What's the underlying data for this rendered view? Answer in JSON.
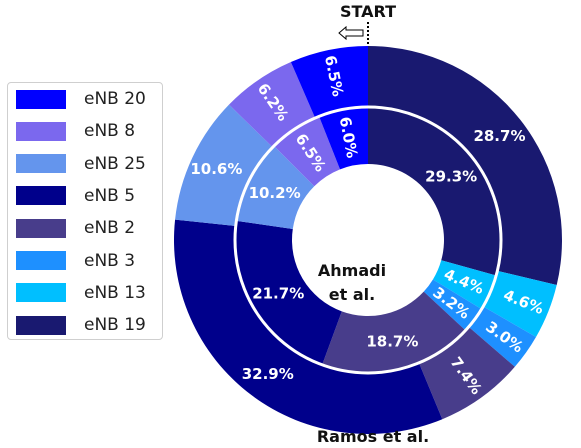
{
  "chart_data": {
    "type": "pie",
    "style": "nested-donut",
    "start_label": "START",
    "outer_ring": {
      "name": "Ramos et al.",
      "slices": [
        {
          "category": "eNB 19",
          "value": 28.7,
          "label": "28.7%"
        },
        {
          "category": "eNB 13",
          "value": 4.6,
          "label": "4.6%"
        },
        {
          "category": "eNB 3",
          "value": 3.0,
          "label": "3.0%"
        },
        {
          "category": "eNB 2",
          "value": 7.4,
          "label": "7.4%"
        },
        {
          "category": "eNB 5",
          "value": 32.9,
          "label": "32.9%"
        },
        {
          "category": "eNB 25",
          "value": 10.6,
          "label": "10.6%"
        },
        {
          "category": "eNB 8",
          "value": 6.2,
          "label": "6.2%"
        },
        {
          "category": "eNB 20",
          "value": 6.5,
          "label": "6.5%"
        }
      ]
    },
    "inner_ring": {
      "name": "Ahmadi et al.",
      "slices": [
        {
          "category": "eNB 19",
          "value": 29.3,
          "label": "29.3%"
        },
        {
          "category": "eNB 13",
          "value": 4.4,
          "label": "4.4%"
        },
        {
          "category": "eNB 3",
          "value": 3.2,
          "label": "3.2%"
        },
        {
          "category": "eNB 2",
          "value": 18.7,
          "label": "18.7%"
        },
        {
          "category": "eNB 5",
          "value": 21.7,
          "label": "21.7%"
        },
        {
          "category": "eNB 25",
          "value": 10.2,
          "label": "10.2%"
        },
        {
          "category": "eNB 8",
          "value": 6.5,
          "label": "6.5%"
        },
        {
          "category": "eNB 20",
          "value": 6.0,
          "label": "6.0%"
        }
      ]
    },
    "legend": {
      "placement": "left",
      "entries": [
        {
          "label": "eNB 20",
          "color": "#0000ff"
        },
        {
          "label": "eNB 8",
          "color": "#7b68ee"
        },
        {
          "label": "eNB 25",
          "color": "#6495ed"
        },
        {
          "label": "eNB 5",
          "color": "#00008b"
        },
        {
          "label": "eNB 2",
          "color": "#483d8b"
        },
        {
          "label": "eNB 3",
          "color": "#1e90ff"
        },
        {
          "label": "eNB 13",
          "color": "#00bfff"
        },
        {
          "label": "eNB 19",
          "color": "#191970"
        }
      ]
    }
  }
}
